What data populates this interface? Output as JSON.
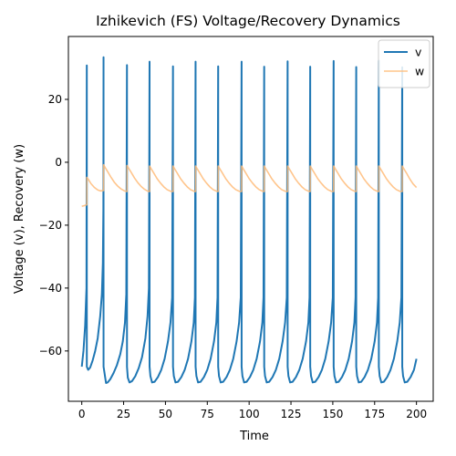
{
  "chart_data": {
    "type": "line",
    "title": "Izhikevich (FS) Voltage/Recovery Dynamics",
    "xlabel": "Time",
    "ylabel": "Voltage (v), Recovery (w)",
    "xlim": [
      -8,
      210
    ],
    "ylim": [
      -76,
      40
    ],
    "xticks": [
      0,
      25,
      50,
      75,
      100,
      125,
      150,
      175,
      200
    ],
    "yticks": [
      -60,
      -40,
      -20,
      0,
      20
    ],
    "grid": false,
    "legend_position": "top-right",
    "spike_times": [
      3.0,
      13.0,
      27.0,
      40.5,
      54.5,
      68.0,
      81.5,
      95.5,
      109.0,
      123.0,
      136.5,
      150.5,
      164.0,
      177.5,
      191.5
    ],
    "spike_peaks": [
      30.8,
      33.4,
      30.9,
      32.0,
      30.5,
      32.0,
      30.5,
      32.0,
      30.4,
      32.1,
      30.4,
      32.2,
      30.3,
      32.3,
      30.2
    ],
    "series": [
      {
        "name": "v",
        "color": "#1f77b4",
        "x": [
          0,
          1.0,
          2.0,
          2.8,
          3.0,
          3.01,
          3.8,
          5.0,
          6.5,
          8.0,
          9.5,
          11.0,
          12.0,
          12.6,
          12.9,
          13.0,
          13.01,
          14.0,
          14.5,
          15.5,
          17.0,
          19.0,
          21.0,
          23.0,
          24.5,
          25.8,
          26.6,
          27.0,
          27.01,
          27.5,
          28.5,
          30.0,
          32.0,
          34.0,
          36.0,
          38.0,
          39.3,
          40.1,
          40.5,
          40.51,
          41.0,
          42.0,
          43.5,
          45.5,
          47.5,
          49.5,
          51.5,
          53.0,
          54.0,
          54.5,
          54.51,
          55.0,
          56.0,
          57.5,
          59.5,
          61.5,
          63.5,
          65.5,
          66.9,
          67.6,
          68.0,
          68.01,
          68.5,
          69.5,
          71.0,
          73.0,
          75.0,
          77.0,
          79.0,
          80.4,
          81.1,
          81.5,
          81.51,
          82.0,
          83.0,
          84.5,
          86.5,
          88.5,
          90.5,
          92.5,
          94.0,
          95.0,
          95.5,
          95.51,
          96.0,
          97.0,
          98.5,
          100.5,
          102.5,
          104.5,
          106.5,
          107.9,
          108.6,
          109.0,
          109.01,
          109.5,
          110.5,
          112.0,
          114.0,
          116.0,
          118.0,
          120.0,
          121.5,
          122.5,
          123.0,
          123.01,
          123.5,
          124.5,
          126.0,
          128.0,
          130.0,
          132.0,
          134.0,
          135.4,
          136.1,
          136.5,
          136.51,
          137.0,
          138.0,
          139.5,
          141.5,
          143.5,
          145.5,
          147.5,
          149.0,
          150.0,
          150.5,
          150.51,
          151.0,
          152.0,
          153.5,
          155.5,
          157.5,
          159.5,
          161.5,
          162.9,
          163.6,
          164.0,
          164.01,
          164.5,
          165.5,
          167.0,
          169.0,
          171.0,
          173.0,
          175.0,
          176.4,
          177.1,
          177.5,
          177.51,
          178.0,
          179.0,
          180.5,
          182.5,
          184.5,
          186.5,
          188.5,
          190.0,
          191.0,
          191.5,
          191.51,
          192.0,
          193.0,
          194.5,
          196.5,
          198.5,
          200.0
        ],
        "y": [
          -65.0,
          -60.0,
          -52.0,
          -40.0,
          30.8,
          -65.0,
          -66.0,
          -65.3,
          -63.0,
          -60.0,
          -56.0,
          -49.0,
          -42.0,
          -32.0,
          -15.0,
          33.4,
          -65.0,
          -68.5,
          -70.2,
          -70.0,
          -69.0,
          -67.0,
          -64.5,
          -61.0,
          -57.0,
          -51.0,
          -42.0,
          30.9,
          -65.0,
          -68.5,
          -70.0,
          -69.6,
          -68.0,
          -65.5,
          -62.0,
          -56.0,
          -49.0,
          -40.0,
          32.0,
          -65.0,
          -68.0,
          -70.0,
          -69.8,
          -68.3,
          -66.0,
          -62.5,
          -57.0,
          -51.0,
          -43.0,
          30.5,
          -65.0,
          -68.0,
          -70.0,
          -69.8,
          -68.3,
          -66.0,
          -62.5,
          -57.0,
          -51.0,
          -43.0,
          32.0,
          -65.0,
          -68.0,
          -70.0,
          -69.8,
          -68.3,
          -66.0,
          -62.5,
          -57.0,
          -51.0,
          -43.0,
          30.5,
          -65.0,
          -68.0,
          -70.0,
          -69.8,
          -68.3,
          -66.0,
          -62.5,
          -57.0,
          -51.0,
          -43.0,
          32.0,
          -65.0,
          -68.0,
          -70.0,
          -69.8,
          -68.3,
          -66.0,
          -62.5,
          -57.0,
          -51.0,
          -43.0,
          30.4,
          -65.0,
          -68.0,
          -70.0,
          -69.8,
          -68.3,
          -66.0,
          -62.5,
          -57.0,
          -51.0,
          -43.0,
          32.1,
          -65.0,
          -68.0,
          -70.0,
          -69.8,
          -68.3,
          -66.0,
          -62.5,
          -57.0,
          -51.0,
          -43.0,
          30.4,
          -65.0,
          -68.0,
          -70.0,
          -69.8,
          -68.3,
          -66.0,
          -62.5,
          -57.0,
          -51.0,
          -43.0,
          32.2,
          -65.0,
          -68.0,
          -70.0,
          -69.8,
          -68.3,
          -66.0,
          -62.5,
          -57.0,
          -51.0,
          -43.0,
          30.3,
          -65.0,
          -68.0,
          -70.0,
          -69.8,
          -68.3,
          -66.0,
          -62.5,
          -57.0,
          -51.0,
          -43.0,
          32.3,
          -65.0,
          -68.0,
          -70.0,
          -69.8,
          -68.3,
          -66.0,
          -62.5,
          -57.0,
          -51.0,
          -43.0,
          30.2,
          -65.0,
          -68.0,
          -70.0,
          -69.8,
          -68.3,
          -66.0,
          -62.5
        ]
      },
      {
        "name": "w",
        "color": "#ffbb78",
        "x": [
          0,
          1.5,
          2.9,
          3.0,
          3.01,
          4.0,
          5.5,
          7.5,
          9.5,
          11.0,
          12.9,
          13.0,
          13.01,
          14.0,
          15.5,
          17.5,
          19.5,
          21.5,
          23.5,
          25.5,
          26.9,
          27.0,
          27.01,
          28.0,
          29.5,
          31.5,
          33.5,
          35.5,
          37.5,
          39.5,
          40.4,
          40.5,
          40.51,
          41.5,
          43.0,
          45.0,
          47.0,
          49.0,
          51.0,
          53.0,
          54.4,
          54.5,
          54.51,
          55.5,
          57.0,
          59.0,
          61.0,
          63.0,
          65.0,
          67.0,
          67.9,
          68.0,
          68.01,
          69.0,
          70.5,
          72.5,
          74.5,
          76.5,
          78.5,
          80.5,
          81.4,
          81.5,
          81.51,
          82.5,
          84.0,
          86.0,
          88.0,
          90.0,
          92.0,
          94.0,
          95.4,
          95.5,
          95.51,
          96.5,
          98.0,
          100.0,
          102.0,
          104.0,
          106.0,
          108.0,
          108.9,
          109.0,
          109.01,
          110.0,
          111.5,
          113.5,
          115.5,
          117.5,
          119.5,
          121.5,
          122.9,
          123.0,
          123.01,
          124.0,
          125.5,
          127.5,
          129.5,
          131.5,
          133.5,
          135.5,
          136.4,
          136.5,
          136.51,
          137.5,
          139.0,
          141.0,
          143.0,
          145.0,
          147.0,
          149.0,
          150.4,
          150.5,
          150.51,
          151.5,
          153.0,
          155.0,
          157.0,
          159.0,
          161.0,
          163.0,
          163.9,
          164.0,
          164.01,
          165.0,
          166.5,
          168.5,
          170.5,
          172.5,
          174.5,
          176.5,
          177.4,
          177.5,
          177.51,
          178.5,
          180.0,
          182.0,
          184.0,
          186.0,
          188.0,
          190.0,
          191.4,
          191.5,
          191.51,
          192.5,
          194.0,
          196.0,
          198.0,
          200.0
        ],
        "y": [
          -14.0,
          -13.8,
          -13.5,
          -13.5,
          -4.8,
          -5.5,
          -6.8,
          -8.0,
          -8.8,
          -9.1,
          -9.0,
          -9.0,
          -0.8,
          -1.7,
          -3.0,
          -4.8,
          -6.4,
          -7.6,
          -8.5,
          -9.1,
          -9.3,
          -9.3,
          -1.0,
          -1.9,
          -3.2,
          -5.0,
          -6.5,
          -7.7,
          -8.6,
          -9.2,
          -9.3,
          -9.3,
          -1.2,
          -2.1,
          -3.4,
          -5.2,
          -6.6,
          -7.8,
          -8.7,
          -9.2,
          -9.3,
          -9.3,
          -1.2,
          -2.1,
          -3.4,
          -5.2,
          -6.6,
          -7.8,
          -8.7,
          -9.2,
          -9.3,
          -9.3,
          -1.2,
          -2.1,
          -3.4,
          -5.2,
          -6.6,
          -7.8,
          -8.7,
          -9.2,
          -9.3,
          -9.3,
          -1.2,
          -2.1,
          -3.4,
          -5.2,
          -6.6,
          -7.8,
          -8.7,
          -9.2,
          -9.3,
          -9.3,
          -1.2,
          -2.1,
          -3.4,
          -5.2,
          -6.6,
          -7.8,
          -8.7,
          -9.2,
          -9.3,
          -9.3,
          -1.2,
          -2.1,
          -3.4,
          -5.2,
          -6.6,
          -7.8,
          -8.7,
          -9.2,
          -9.3,
          -9.3,
          -1.2,
          -2.1,
          -3.4,
          -5.2,
          -6.6,
          -7.8,
          -8.7,
          -9.2,
          -9.3,
          -9.3,
          -1.2,
          -2.1,
          -3.4,
          -5.2,
          -6.6,
          -7.8,
          -8.7,
          -9.2,
          -9.3,
          -9.3,
          -1.2,
          -2.1,
          -3.4,
          -5.2,
          -6.6,
          -7.8,
          -8.7,
          -9.2,
          -9.3,
          -9.3,
          -1.2,
          -2.1,
          -3.4,
          -5.2,
          -6.6,
          -7.8,
          -8.7,
          -9.2,
          -9.3,
          -9.3,
          -1.2,
          -2.1,
          -3.4,
          -5.2,
          -6.6,
          -7.8,
          -8.7,
          -9.2,
          -9.3,
          -9.3,
          -1.2,
          -2.1,
          -3.4,
          -5.3,
          -6.9,
          -8.0
        ]
      }
    ]
  }
}
